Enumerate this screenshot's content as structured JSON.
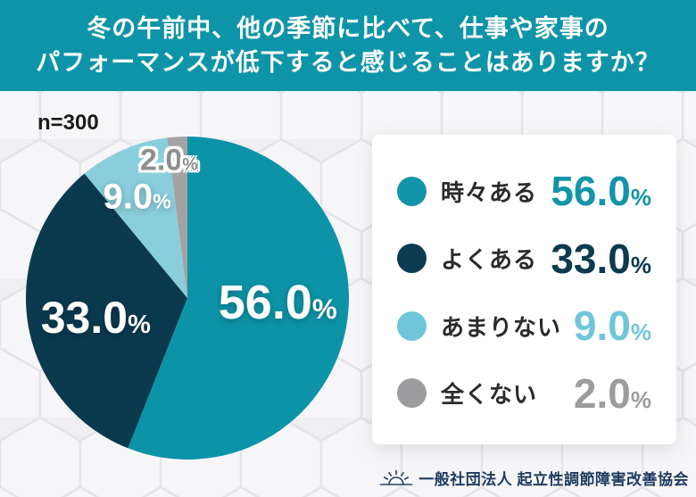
{
  "header": {
    "title_line1": "冬の午前中、他の季節に比べて、仕事や家事の",
    "title_line2": "パフォーマンスが低下すると感じることはありますか？",
    "bg_color": "#0E94A8",
    "text_color": "#FFFFFF"
  },
  "sample_label": "n=300",
  "chart_data": {
    "type": "pie",
    "title": "冬の午前中、他の季節に比べて、仕事や家事のパフォーマンスが低下すると感じることはありますか？",
    "sample_size_label": "n=300",
    "categories": [
      "時々ある",
      "よくある",
      "あまりない",
      "全くない"
    ],
    "values": [
      56.0,
      33.0,
      9.0,
      2.0
    ],
    "values_display": [
      "56.0",
      "33.0",
      "9.0",
      "2.0"
    ],
    "unit": "%",
    "slice_colors": [
      "#0D93A7",
      "#0B3A4F",
      "#8BCEDB",
      "#A3A3A5"
    ],
    "slice_label_colors": [
      "#FFFFFF",
      "#FFFFFF",
      "#FFFFFF",
      "#8E8E90"
    ],
    "start_angle_deg": 0,
    "direction": "clockwise",
    "legend_position": "right"
  },
  "legend": {
    "items": [
      {
        "label": "時々ある",
        "value": "56.0",
        "suffix": "%",
        "color": "#1295A9",
        "value_color": "#1295A9"
      },
      {
        "label": "よくある",
        "value": "33.0",
        "suffix": "%",
        "color": "#0C3A50",
        "value_color": "#0C3A50"
      },
      {
        "label": "あまりない",
        "value": "9.0",
        "suffix": "%",
        "color": "#6FC6D8",
        "value_color": "#6FC6D8"
      },
      {
        "label": "全くない",
        "value": "2.0",
        "suffix": "%",
        "color": "#9C9C9E",
        "value_color": "#9C9C9E"
      }
    ]
  },
  "footer": {
    "org_name": "一般社団法人 起立性調節障害改善協会",
    "icon": "rising-sun-icon",
    "text_color": "#1E3A5F"
  }
}
